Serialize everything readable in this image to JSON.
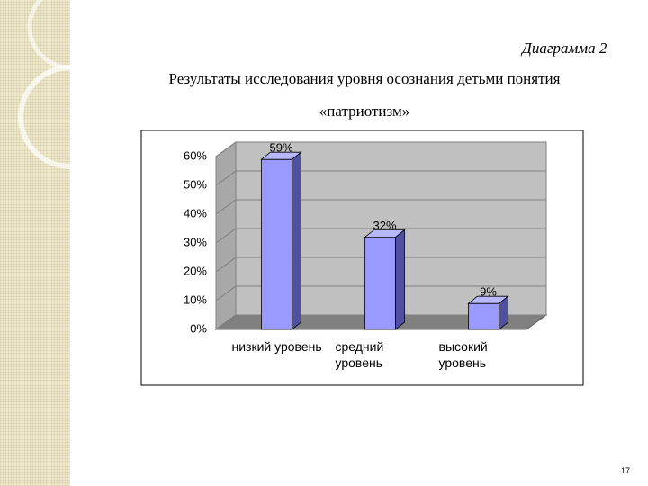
{
  "chart_data": {
    "type": "bar",
    "caption": "Диаграмма 2",
    "title": "Результаты исследования уровня осознания детьми понятия «патриотизм»",
    "categories": [
      "низкий уровень",
      "средний уровень",
      "высокий уровень"
    ],
    "values": [
      59,
      32,
      9
    ],
    "value_labels": [
      "59%",
      "32%",
      "9%"
    ],
    "color": "#9999ff",
    "ylim": [
      0,
      65
    ],
    "yticks": [
      {
        "value": 0,
        "label": "0%"
      },
      {
        "value": 10,
        "label": "10%"
      },
      {
        "value": 20,
        "label": "20%"
      },
      {
        "value": 30,
        "label": "30%"
      },
      {
        "value": 40,
        "label": "40%"
      },
      {
        "value": 50,
        "label": "50%"
      },
      {
        "value": 60,
        "label": "60%"
      }
    ],
    "grid": true,
    "page_number": "17"
  }
}
